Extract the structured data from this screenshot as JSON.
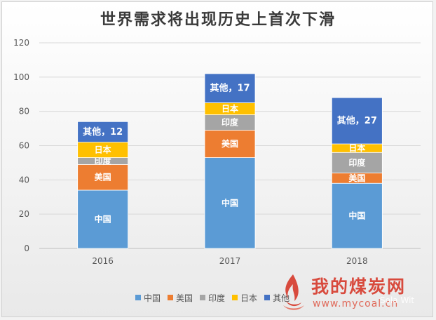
{
  "chart_data": {
    "type": "bar",
    "stacked": true,
    "title": "世界需求将出现历史上首次下滑",
    "categories": [
      "2016",
      "2017",
      "2018"
    ],
    "ylim": [
      0,
      120
    ],
    "yticks": [
      0,
      20,
      40,
      60,
      80,
      100,
      120
    ],
    "grid": true,
    "legend_position": "bottom",
    "series": [
      {
        "name": "中国",
        "color": "#5b9bd5",
        "values": [
          34,
          53,
          38
        ]
      },
      {
        "name": "美国",
        "color": "#ed7d31",
        "values": [
          15,
          16,
          6
        ]
      },
      {
        "name": "印度",
        "color": "#a5a5a5",
        "values": [
          4,
          9,
          12
        ]
      },
      {
        "name": "日本",
        "color": "#ffc000",
        "values": [
          9,
          7,
          5
        ]
      },
      {
        "name": "其他",
        "color": "#4472c4",
        "values": [
          12,
          17,
          27
        ]
      }
    ],
    "data_labels": [
      [
        "中国",
        "中国",
        "中国"
      ],
      [
        "美国",
        "美国",
        "美国"
      ],
      [
        "印度",
        "印度",
        "印度"
      ],
      [
        "日本",
        "日本",
        "日本"
      ],
      [
        "其他，12",
        "其他，17",
        "其他，27"
      ]
    ]
  },
  "watermark": {
    "text": "我的煤炭网",
    "url": "www.mycoal.cn",
    "wechat": "Sola Wit"
  }
}
